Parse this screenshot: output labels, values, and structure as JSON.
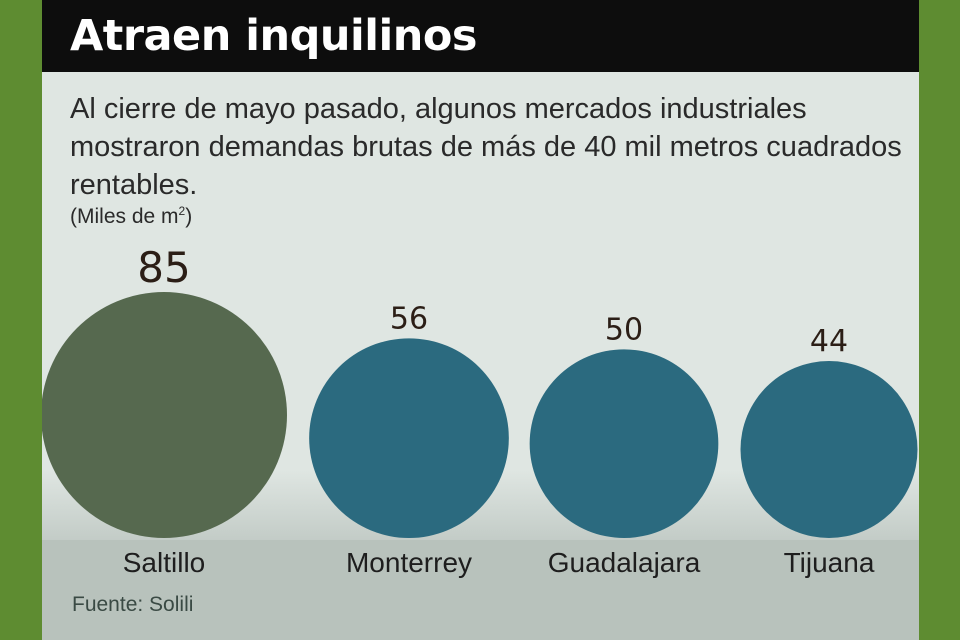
{
  "title": "Atraen inquilinos",
  "subtitle": "Al cierre de mayo pasado, algunos mercados industriales mostraron demandas brutas de más de 40 mil metros cuadrados rentables.",
  "unit_label": "(Miles de m",
  "unit_sup": "2",
  "unit_close": ")",
  "source": "Fuente: Solili",
  "colors": {
    "background": "#5e8c31",
    "header": "#0d0d0d",
    "highlight": "#56694f",
    "default": "#2b6a7f"
  },
  "chart_data": {
    "type": "bubble",
    "categories": [
      "Saltillo",
      "Monterrey",
      "Guadalajara",
      "Tijuana"
    ],
    "values": [
      85,
      56,
      50,
      44
    ],
    "highlight": "Saltillo"
  }
}
